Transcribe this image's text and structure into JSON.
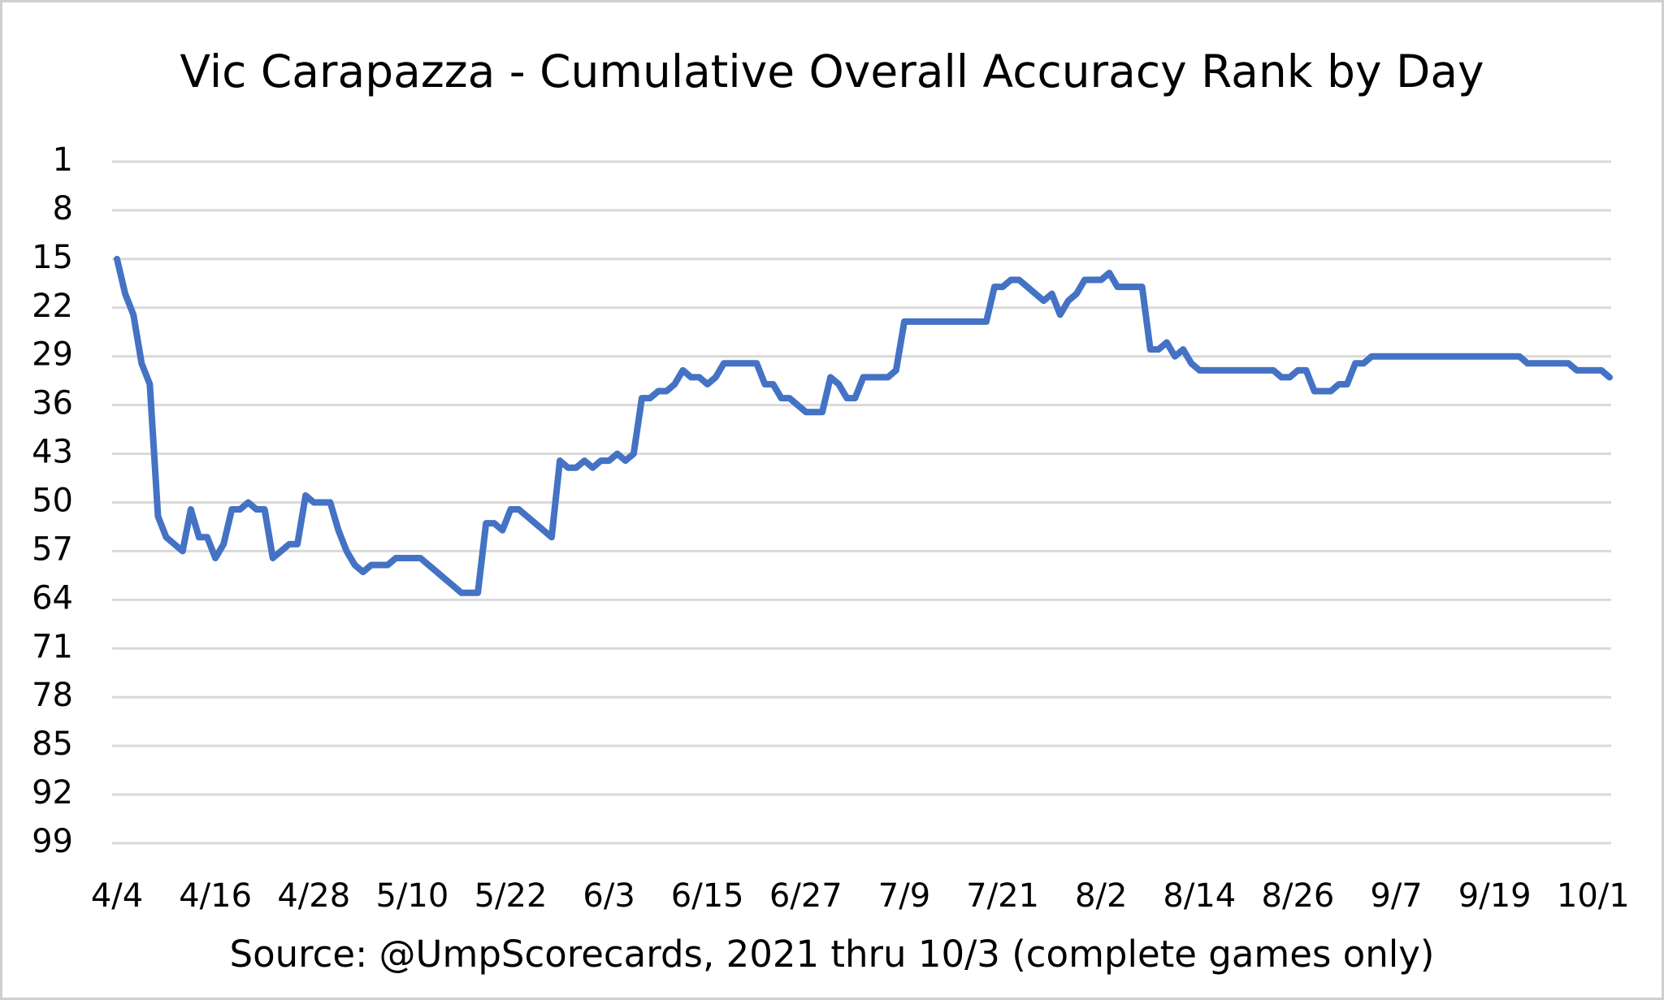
{
  "chart_data": {
    "type": "line",
    "title": "Vic Carapazza - Cumulative Overall Accuracy Rank by Day",
    "subtitle": "Source:  @UmpScorecards, 2021 thru 10/3 (complete games only)",
    "categories": [
      "4/4",
      null,
      null,
      null,
      null,
      null,
      null,
      null,
      null,
      null,
      null,
      null,
      "4/16",
      null,
      null,
      null,
      null,
      null,
      null,
      null,
      null,
      null,
      null,
      null,
      "4/28",
      null,
      null,
      null,
      null,
      null,
      null,
      null,
      null,
      null,
      null,
      null,
      "5/10",
      null,
      null,
      null,
      null,
      null,
      null,
      null,
      null,
      null,
      null,
      null,
      "5/22",
      null,
      null,
      null,
      null,
      null,
      null,
      null,
      null,
      null,
      null,
      null,
      "6/3",
      null,
      null,
      null,
      null,
      null,
      null,
      null,
      null,
      null,
      null,
      null,
      "6/15",
      null,
      null,
      null,
      null,
      null,
      null,
      null,
      null,
      null,
      null,
      null,
      "6/27",
      null,
      null,
      null,
      null,
      null,
      null,
      null,
      null,
      null,
      null,
      null,
      "7/9",
      null,
      null,
      null,
      null,
      null,
      null,
      null,
      null,
      null,
      null,
      null,
      "7/21",
      null,
      null,
      null,
      null,
      null,
      null,
      null,
      null,
      null,
      null,
      null,
      "8/2",
      null,
      null,
      null,
      null,
      null,
      null,
      null,
      null,
      null,
      null,
      null,
      "8/14",
      null,
      null,
      null,
      null,
      null,
      null,
      null,
      null,
      null,
      null,
      null,
      "8/26",
      null,
      null,
      null,
      null,
      null,
      null,
      null,
      null,
      null,
      null,
      null,
      "9/7",
      null,
      null,
      null,
      null,
      null,
      null,
      null,
      null,
      null,
      null,
      null,
      "9/19",
      null,
      null,
      null,
      null,
      null,
      null,
      null,
      null,
      null,
      null,
      null,
      "10/1",
      null,
      null
    ],
    "values": [
      15,
      20,
      23,
      30,
      33,
      52,
      55,
      56,
      57,
      51,
      55,
      55,
      58,
      56,
      51,
      51,
      50,
      51,
      51,
      58,
      57,
      56,
      56,
      49,
      50,
      50,
      50,
      54,
      57,
      59,
      60,
      59,
      59,
      59,
      58,
      58,
      58,
      58,
      59,
      60,
      61,
      62,
      63,
      63,
      63,
      53,
      53,
      54,
      51,
      51,
      52,
      53,
      54,
      55,
      44,
      45,
      45,
      44,
      45,
      44,
      44,
      43,
      44,
      43,
      35,
      35,
      34,
      34,
      33,
      31,
      32,
      32,
      33,
      32,
      30,
      30,
      30,
      30,
      30,
      33,
      33,
      35,
      35,
      36,
      37,
      37,
      37,
      32,
      33,
      35,
      35,
      32,
      32,
      32,
      32,
      31,
      24,
      24,
      24,
      24,
      24,
      24,
      24,
      24,
      24,
      24,
      24,
      19,
      19,
      18,
      18,
      19,
      20,
      21,
      20,
      23,
      21,
      20,
      18,
      18,
      18,
      17,
      19,
      19,
      19,
      19,
      28,
      28,
      27,
      29,
      28,
      30,
      31,
      31,
      31,
      31,
      31,
      31,
      31,
      31,
      31,
      31,
      32,
      32,
      31,
      31,
      34,
      34,
      34,
      33,
      33,
      30,
      30,
      29,
      29,
      29,
      29,
      29,
      29,
      29,
      29,
      29,
      29,
      29,
      29,
      29,
      29,
      29,
      29,
      29,
      29,
      29,
      30,
      30,
      30,
      30,
      30,
      30,
      31,
      31,
      31,
      31,
      32
    ],
    "color": "#4472c4",
    "ylim": [
      1,
      99
    ],
    "y_reversed": true,
    "yticks": [
      1,
      8,
      15,
      22,
      29,
      36,
      43,
      50,
      57,
      64,
      71,
      78,
      85,
      92,
      99
    ],
    "grid": true
  }
}
